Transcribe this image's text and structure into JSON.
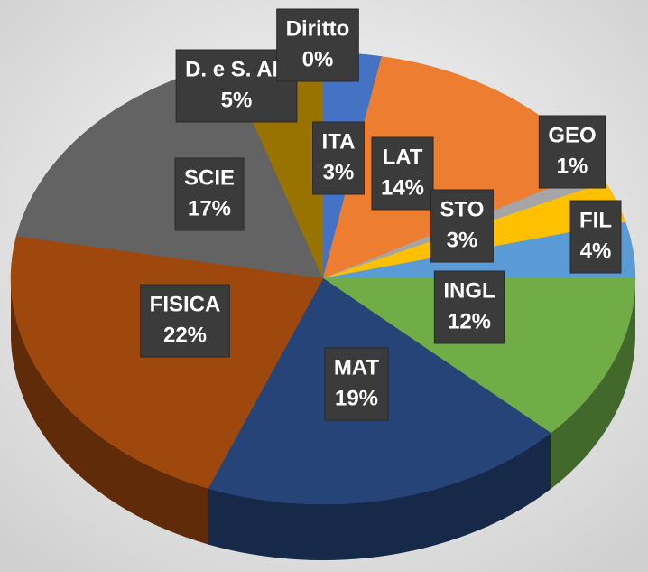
{
  "chart_data": {
    "type": "pie",
    "categories": [
      "ITA",
      "LAT",
      "GEO",
      "STO",
      "FIL",
      "INGL",
      "MAT",
      "FISICA",
      "SCIE",
      "D. e S. AR",
      "Diritto"
    ],
    "values": [
      3,
      14,
      1,
      3,
      4,
      12,
      19,
      22,
      17,
      5,
      0
    ],
    "value_labels": [
      "3%",
      "14%",
      "1%",
      "3%",
      "4%",
      "12%",
      "19%",
      "22%",
      "17%",
      "5%",
      "0%"
    ],
    "colors": [
      "#4472c4",
      "#ed7d31",
      "#a5a5a5",
      "#ffc000",
      "#5b9bd5",
      "#70ad47",
      "#264478",
      "#9e480e",
      "#636363",
      "#997300",
      "#4472c4"
    ]
  }
}
